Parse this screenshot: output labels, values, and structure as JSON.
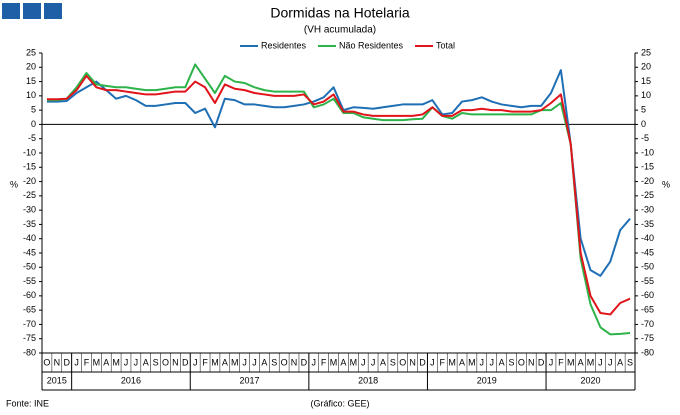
{
  "chart_data": {
    "type": "line",
    "title": "Dormidas na Hotelaria",
    "subtitle": "(VH acumulada)",
    "y_label": "%",
    "y2_label": "%",
    "groups": [
      {
        "label": "2015",
        "categories": [
          "O",
          "N",
          "D"
        ]
      },
      {
        "label": "2016",
        "categories": [
          "J",
          "F",
          "M",
          "A",
          "M",
          "J",
          "J",
          "A",
          "S",
          "O",
          "N",
          "D"
        ]
      },
      {
        "label": "2017",
        "categories": [
          "J",
          "F",
          "M",
          "A",
          "M",
          "J",
          "J",
          "A",
          "S",
          "O",
          "N",
          "D"
        ]
      },
      {
        "label": "2018",
        "categories": [
          "J",
          "F",
          "M",
          "A",
          "M",
          "J",
          "J",
          "A",
          "S",
          "O",
          "N",
          "D"
        ]
      },
      {
        "label": "2019",
        "categories": [
          "J",
          "F",
          "M",
          "A",
          "M",
          "J",
          "J",
          "A",
          "S",
          "O",
          "N",
          "D"
        ]
      },
      {
        "label": "2020",
        "categories": [
          "J",
          "F",
          "M",
          "A",
          "M",
          "J",
          "J",
          "A",
          "S"
        ]
      }
    ],
    "series": [
      {
        "name": "Residentes",
        "color": "#1f6fb4",
        "values": [
          8,
          8,
          8.2,
          11,
          13,
          15,
          12,
          9,
          10,
          8.5,
          6.5,
          6.5,
          7,
          7.5,
          7.5,
          4,
          5.5,
          -1,
          9,
          8.5,
          7,
          7,
          6.5,
          6,
          6,
          6.5,
          7,
          8,
          9.5,
          13,
          5,
          6,
          5.8,
          5.5,
          6,
          6.5,
          7,
          7,
          7,
          8.5,
          3.5,
          4,
          8,
          8.5,
          9.5,
          8,
          7,
          6.5,
          6,
          6.5,
          6.5,
          11,
          19,
          -7,
          -40,
          -51,
          -53,
          -48,
          -37,
          -33
        ]
      },
      {
        "name": "Não Residentes",
        "color": "#2db34a",
        "values": [
          8.5,
          8.5,
          9,
          13,
          18,
          14,
          13.5,
          13,
          13,
          12.5,
          12,
          12,
          12.5,
          13,
          13,
          21,
          16,
          11,
          17,
          15,
          14.5,
          13,
          12,
          11.5,
          11.5,
          11.5,
          11.5,
          6,
          7,
          9,
          4,
          4,
          2.5,
          2,
          1.5,
          1.5,
          1.5,
          1.8,
          2,
          6,
          3,
          2,
          4,
          3.5,
          3.5,
          3.5,
          3.5,
          3.5,
          3.5,
          3.5,
          5,
          5,
          7.5,
          -7,
          -47,
          -63,
          -71,
          -73.5,
          -73.3,
          -73
        ]
      },
      {
        "name": "Total",
        "color": "#e0141a",
        "values": [
          8.8,
          8.8,
          9,
          12,
          17,
          13,
          12,
          12,
          11.5,
          11,
          10.5,
          10.5,
          11,
          11.5,
          11.5,
          15,
          13,
          7.5,
          14,
          12.5,
          12,
          11,
          10.5,
          10,
          10,
          10,
          10.5,
          7,
          8,
          10.5,
          4.5,
          4.5,
          3.5,
          3,
          3,
          3,
          3,
          3,
          3.5,
          6,
          3,
          3,
          5,
          5,
          5.5,
          5,
          5,
          4.5,
          4.5,
          4.5,
          5,
          7.5,
          10.5,
          -7,
          -45,
          -60,
          -66,
          -66.5,
          -62.5,
          -61
        ]
      }
    ],
    "ylim": [
      -80,
      25
    ],
    "yticks": [
      -80,
      -75,
      -70,
      -65,
      -60,
      -55,
      -50,
      -45,
      -40,
      -35,
      -30,
      -25,
      -20,
      -15,
      -10,
      -5,
      0,
      5,
      10,
      15,
      20,
      25
    ],
    "y2lim": [
      -80,
      25
    ],
    "y2ticks": [
      -80,
      -75,
      -70,
      -65,
      -60,
      -55,
      -50,
      -45,
      -40,
      -35,
      -30,
      -25,
      -20,
      -15,
      -10,
      -5,
      0,
      5,
      10,
      15,
      20,
      25
    ],
    "legend": "top",
    "source": "Fonte: INE",
    "credit": "(Gráfico: GEE)"
  }
}
